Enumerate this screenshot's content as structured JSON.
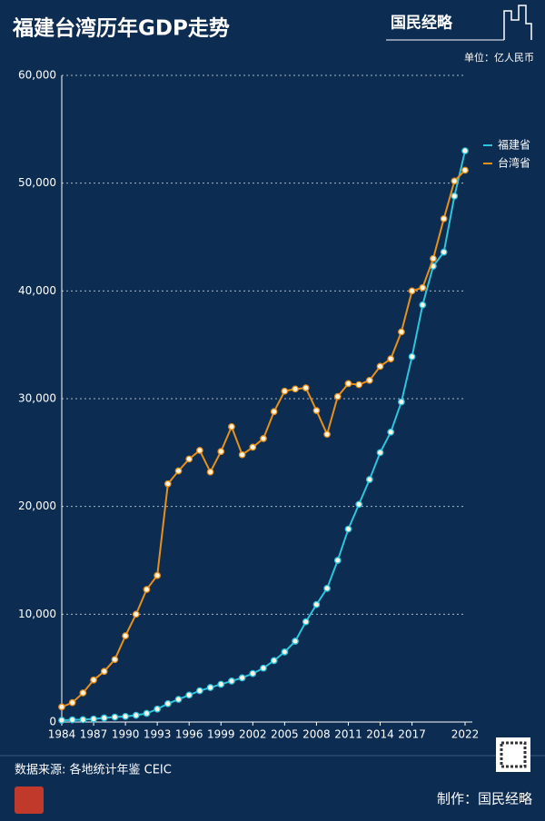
{
  "header": {
    "title": "福建台湾历年GDP走势",
    "brand": "国民经略",
    "unit": "单位：亿人民币"
  },
  "chart_data": {
    "type": "line",
    "x": [
      1984,
      1985,
      1986,
      1987,
      1988,
      1989,
      1990,
      1991,
      1992,
      1993,
      1994,
      1995,
      1996,
      1997,
      1998,
      1999,
      2000,
      2001,
      2002,
      2003,
      2004,
      2005,
      2006,
      2007,
      2008,
      2009,
      2010,
      2011,
      2012,
      2013,
      2014,
      2015,
      2016,
      2017,
      2018,
      2019,
      2020,
      2021,
      2022
    ],
    "series": [
      {
        "name": "福建省",
        "color": "#2ec4dc",
        "values": [
          160,
          200,
          220,
          280,
          380,
          460,
          520,
          620,
          800,
          1200,
          1700,
          2100,
          2500,
          2900,
          3200,
          3500,
          3800,
          4100,
          4500,
          5000,
          5700,
          6500,
          7500,
          9300,
          10900,
          12400,
          15000,
          17900,
          20200,
          22500,
          25000,
          26900,
          29700,
          33900,
          38700,
          42300,
          43600,
          48800,
          53000
        ]
      },
      {
        "name": "台湾省",
        "color": "#e8901a",
        "values": [
          1400,
          1800,
          2700,
          3900,
          4700,
          5800,
          8000,
          10000,
          12300,
          13600,
          22100,
          23300,
          24400,
          25200,
          23200,
          25100,
          27400,
          24800,
          25500,
          26300,
          28800,
          30700,
          30900,
          31000,
          28900,
          26700,
          30200,
          31400,
          31300,
          31700,
          33000,
          33700,
          36200,
          40000,
          40300,
          43000,
          46700,
          50200,
          51200
        ]
      }
    ],
    "xlim": [
      1984,
      2022
    ],
    "xticks": [
      1984,
      1987,
      1990,
      1993,
      1996,
      1999,
      2002,
      2005,
      2008,
      2011,
      2014,
      2017,
      2022
    ],
    "ylim": [
      0,
      60000
    ],
    "yticks": [
      0,
      {
        "value": 10000,
        "label": "10,000"
      },
      {
        "value": 20000,
        "label": "20,000"
      },
      {
        "value": 30000,
        "label": "30,000"
      },
      {
        "value": 40000,
        "label": "40,000"
      },
      {
        "value": 50000,
        "label": "50,000"
      },
      {
        "value": 60000,
        "label": "60,000"
      }
    ],
    "grid": true,
    "legend": "top-right"
  },
  "footer": {
    "source": "数据来源: 各地统计年鉴 CEIC",
    "credit": "制作：国民经略"
  }
}
